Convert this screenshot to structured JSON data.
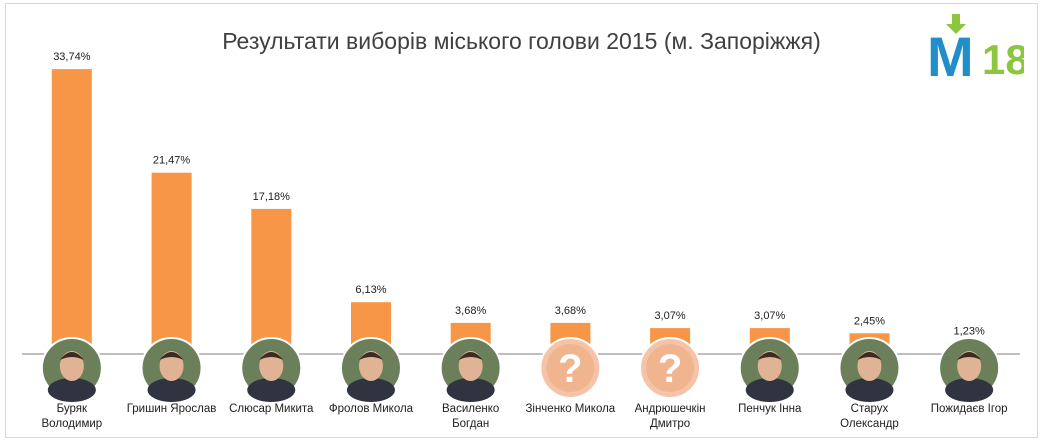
{
  "chart_data": {
    "type": "bar",
    "title": "Результати виборів міського голови 2015 (м. Запоріжжя)",
    "categories": [
      [
        "Буряк",
        "Володимир"
      ],
      [
        "Гришин Ярослав"
      ],
      [
        "Слюсар Микита"
      ],
      [
        "Фролов Микола"
      ],
      [
        "Василенко",
        "Богдан"
      ],
      [
        "Зінченко Микола"
      ],
      [
        "Андрюшечкін",
        "Дмитро"
      ],
      [
        "Пенчук Інна"
      ],
      [
        "Старух",
        "Олександр"
      ],
      [
        "Пожидаєв Ігор"
      ]
    ],
    "values": [
      33.74,
      21.47,
      17.18,
      6.13,
      3.68,
      3.68,
      3.07,
      3.07,
      2.45,
      1.23
    ],
    "value_labels": [
      "33,74%",
      "21,47%",
      "17,18%",
      "6,13%",
      "3,68%",
      "3,68%",
      "3,07%",
      "3,07%",
      "2,45%",
      "1,23%"
    ],
    "photo_unknown": [
      false,
      false,
      false,
      false,
      false,
      true,
      true,
      false,
      false,
      false
    ],
    "ylim": [
      0,
      36
    ],
    "bar_color": "#f79646",
    "xlabel": "",
    "ylabel": ""
  },
  "logo": {
    "text_m": "M",
    "text_18": "18",
    "color_blue": "#1f8ec9",
    "color_green": "#8cc63f"
  }
}
